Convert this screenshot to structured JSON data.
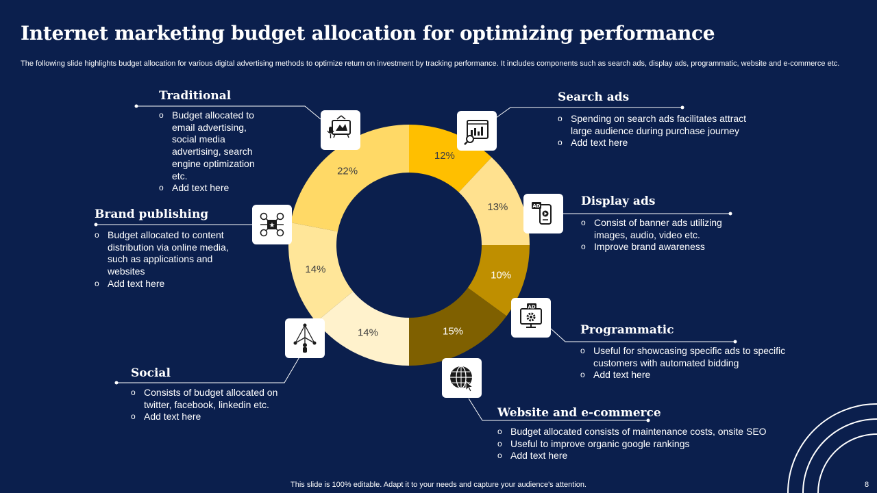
{
  "title": "Internet marketing budget allocation for optimizing performance",
  "subtitle": "The following slide highlights budget allocation for various digital advertising methods to optimize return on investment by tracking performance. It includes components such as search ads, display ads, programmatic, website and e-commerce etc.",
  "chart_data": {
    "type": "pie",
    "variant": "donut",
    "categories": [
      "Search ads",
      "Display ads",
      "Programmatic",
      "Website and e-commerce",
      "Social",
      "Brand publishing",
      "Traditional"
    ],
    "values": [
      12,
      13,
      10,
      15,
      14,
      14,
      22
    ],
    "labels": [
      "12%",
      "13%",
      "10%",
      "15%",
      "14%",
      "14%",
      "22%"
    ],
    "colors": [
      "#ffbf00",
      "#ffe18f",
      "#bf8f00",
      "#7f6000",
      "#fff2cc",
      "#ffe699",
      "#ffd966"
    ]
  },
  "sections": {
    "traditional": {
      "heading": "Traditional",
      "bullets": [
        "Budget allocated to email advertising, social media advertising, search engine optimization etc.",
        "Add text here"
      ]
    },
    "brand": {
      "heading": "Brand publishing",
      "bullets": [
        "Budget allocated to content distribution via online media, such as applications and websites",
        "Add text here"
      ]
    },
    "social": {
      "heading": "Social",
      "bullets": [
        "Consists of budget allocated on twitter, facebook, linkedin etc.",
        "Add text here"
      ]
    },
    "search": {
      "heading": "Search ads",
      "bullets": [
        "Spending on search ads facilitates attract large audience during purchase journey",
        "Add text here"
      ]
    },
    "display": {
      "heading": "Display ads",
      "bullets": [
        "Consist of banner ads utilizing images, audio, video etc.",
        "Improve brand awareness"
      ]
    },
    "programmatic": {
      "heading": "Programmatic",
      "bullets": [
        "Useful for showcasing specific ads to specific customers with automated bidding",
        "Add text here"
      ]
    },
    "website": {
      "heading": "Website and e-commerce",
      "bullets": [
        "Budget allocated consists of maintenance costs, onsite SEO",
        "Useful to improve organic google rankings",
        "Add text here"
      ]
    }
  },
  "icons": {
    "traditional": "tv-microphone-icon",
    "search": "analytics-search-icon",
    "brand": "content-network-icon",
    "display": "ad-smartphone-icon",
    "programmatic": "ad-monitor-gear-icon",
    "social": "network-person-icon",
    "website": "globe-cursor-icon"
  },
  "footer": "This slide is 100% editable. Adapt it to your needs and capture your audience's attention.",
  "page_number": "8"
}
